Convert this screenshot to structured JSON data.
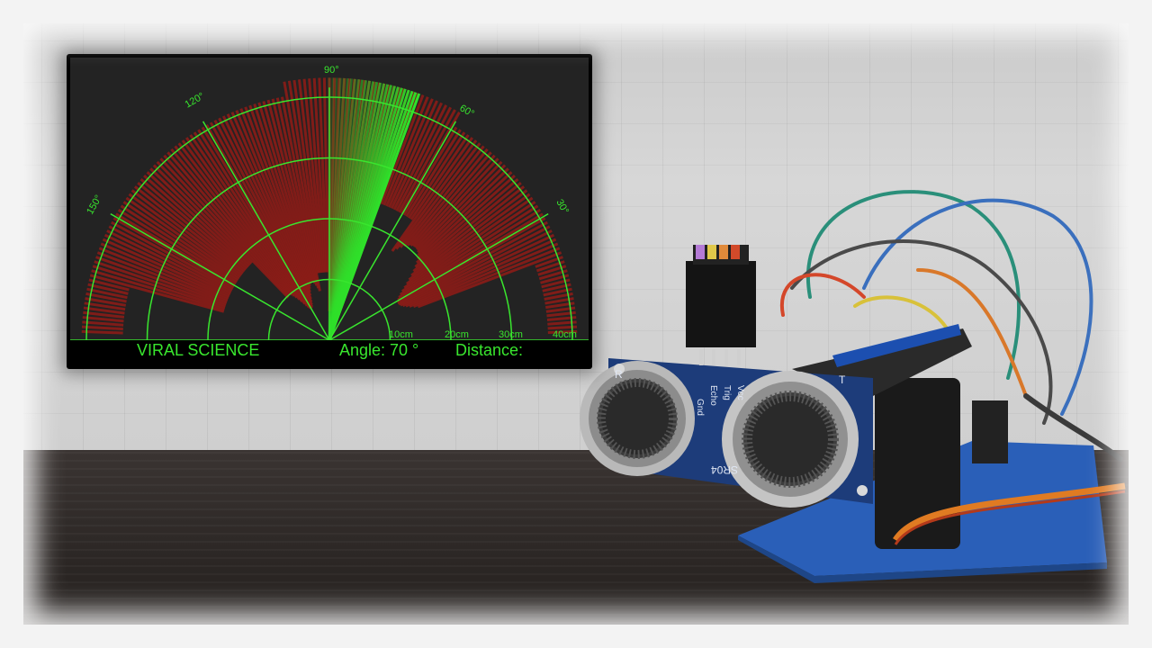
{
  "radar": {
    "brand": "VIRAL SCIENCE",
    "angle_text": "Angle: 70 °",
    "distance_text": "Distance:",
    "distance_labels": [
      "10cm",
      "20cm",
      "30cm",
      "40cm"
    ],
    "angle_labels": [
      "90°",
      "120°",
      "60°",
      "150°",
      "30°"
    ],
    "current_angle": 70,
    "colors": {
      "grid": "#39e62e",
      "sweep": "#2fe02a",
      "hit": "#8b1c17",
      "background": "#232323"
    }
  },
  "sensor": {
    "pin_labels": [
      "Vcc",
      "Trig",
      "Echo",
      "Gnd"
    ],
    "corner_labels": [
      "T",
      "R"
    ],
    "model": "SR04"
  }
}
